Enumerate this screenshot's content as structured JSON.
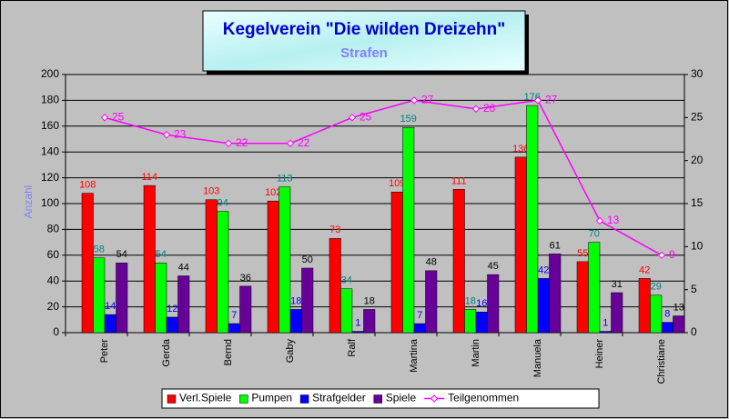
{
  "chart_data": {
    "type": "bar",
    "title": "Kegelverein \"Die wilden Dreizehn\"",
    "subtitle": "Strafen",
    "y_label": "Anzahl",
    "categories": [
      "Peter",
      "Gerda",
      "Bernd",
      "Gaby",
      "Ralf",
      "Martina",
      "Martin",
      "Manuela",
      "Heiner",
      "Christiane"
    ],
    "series": [
      {
        "name": "Verl.Spiele",
        "color": "#ff0000",
        "label_color": "#ff0000",
        "values": [
          108,
          114,
          103,
          102,
          73,
          109,
          111,
          136,
          55,
          42
        ]
      },
      {
        "name": "Pumpen",
        "color": "#00ff00",
        "label_color": "#008080",
        "values": [
          58,
          54,
          94,
          113,
          34,
          159,
          18,
          176,
          70,
          29
        ]
      },
      {
        "name": "Strafgelder",
        "color": "#0000ff",
        "label_color": "#0000ff",
        "values": [
          14,
          12,
          7,
          18,
          1,
          7,
          16,
          42,
          1,
          8
        ]
      },
      {
        "name": "Spiele",
        "color": "#660099",
        "label_color": "#000000",
        "values": [
          54,
          44,
          36,
          50,
          18,
          48,
          45,
          61,
          31,
          13
        ]
      },
      {
        "name": "Teilgenommen",
        "type": "line",
        "axis": "y2",
        "color": "#ff00ff",
        "label_color": "#ff00ff",
        "values": [
          25,
          23,
          22,
          22,
          25,
          27,
          26,
          27,
          13,
          9
        ]
      }
    ],
    "ylim": [
      0,
      200
    ],
    "yticks": [
      0,
      20,
      40,
      60,
      80,
      100,
      120,
      140,
      160,
      180,
      200
    ],
    "y2lim": [
      0,
      30
    ],
    "y2ticks": [
      0,
      5,
      10,
      15,
      20,
      25,
      30
    ],
    "grid": true,
    "legend": "bottom"
  }
}
